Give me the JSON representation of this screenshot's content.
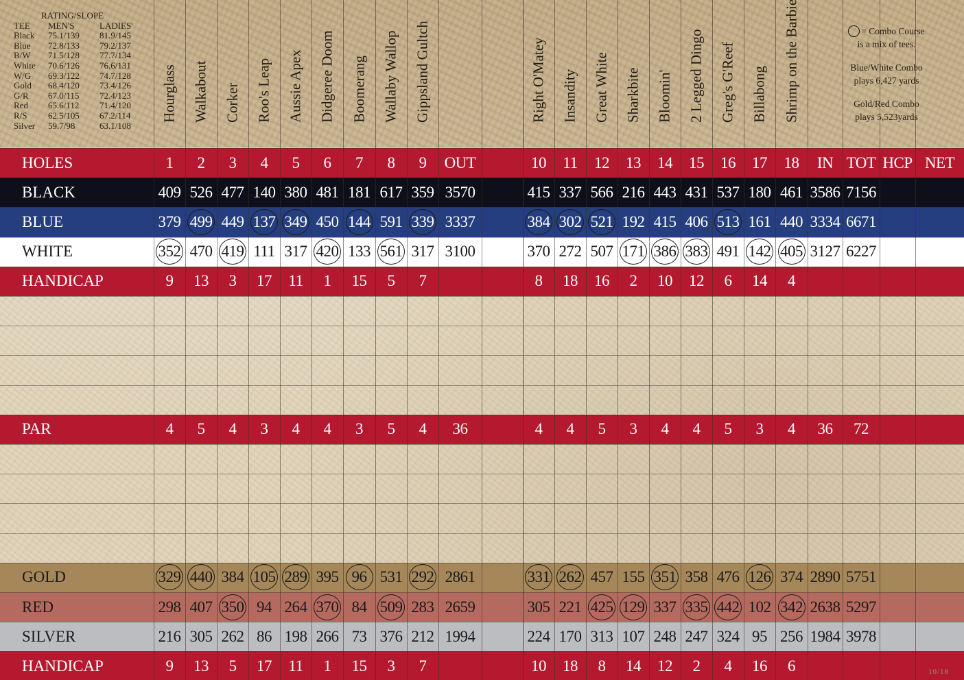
{
  "rating": {
    "title": "RATING/SLOPE",
    "headers": [
      "TEE",
      "MEN'S",
      "LADIES'"
    ],
    "rows": [
      [
        "Black",
        "75.1/139",
        "81.9/145"
      ],
      [
        "Blue",
        "72.8/133",
        "79.2/137"
      ],
      [
        "B/W",
        "71.5/128",
        "77.7/134"
      ],
      [
        "White",
        "70.6/126",
        "76.6/131"
      ],
      [
        "W/G",
        "69.3/122",
        "74.7/128"
      ],
      [
        "Gold",
        "68.4/120",
        "73.4/126"
      ],
      [
        "G/R",
        "67.0/115",
        "72.4/123"
      ],
      [
        "Red",
        "65.6/112",
        "71.4/120"
      ],
      [
        "R/S",
        "62.5/105",
        "67.2/114"
      ],
      [
        "Silver",
        "59.7/98",
        "63.1/108"
      ]
    ]
  },
  "hole_names": [
    "Hourglass",
    "Walkabout",
    "Corker",
    "Roo's Leap",
    "Aussie Apex",
    "Didgeree Doom",
    "Boomerang",
    "Wallaby Wallop",
    "Gippsland Gultch",
    "Right O'Matey",
    "Insandity",
    "Great White",
    "Sharkbite",
    "Bloomin'",
    "2 Legged Dingo",
    "Greg's G'Reef",
    "Billabong",
    "Shrimp on the Barbie"
  ],
  "legend": {
    "combo_line1": "= Combo Course",
    "combo_line2": "is a mix of tees.",
    "bw_line1": "Blue/White Combo",
    "bw_line2": "plays 6,427 yards",
    "gr_line1": "Gold/Red Combo",
    "gr_line2": "plays 5,523yards"
  },
  "colors": {
    "red": "#b5192f",
    "black": "#0f0f1c",
    "blue": "#253e7f",
    "white": "#ffffff",
    "gold": "#a5875a",
    "redtee": "#b56a5f",
    "silver": "#bbbdc0"
  },
  "rows": [
    {
      "label": "HOLES",
      "style": "red",
      "cells": [
        "1",
        "2",
        "3",
        "4",
        "5",
        "6",
        "7",
        "8",
        "9",
        "OUT",
        "",
        "10",
        "11",
        "12",
        "13",
        "14",
        "15",
        "16",
        "17",
        "18",
        "IN",
        "TOT",
        "HCP",
        "NET"
      ],
      "circled": []
    },
    {
      "label": "BLACK",
      "style": "black",
      "cells": [
        "409",
        "526",
        "477",
        "140",
        "380",
        "481",
        "181",
        "617",
        "359",
        "3570",
        "",
        "415",
        "337",
        "566",
        "216",
        "443",
        "431",
        "537",
        "180",
        "461",
        "3586",
        "7156",
        "",
        ""
      ],
      "circled": []
    },
    {
      "label": "BLUE",
      "style": "blue",
      "cells": [
        "379",
        "499",
        "449",
        "137",
        "349",
        "450",
        "144",
        "591",
        "339",
        "3337",
        "",
        "384",
        "302",
        "521",
        "192",
        "415",
        "406",
        "513",
        "161",
        "440",
        "3334",
        "6671",
        "",
        ""
      ],
      "circled": [
        1,
        3,
        4,
        6,
        8,
        11,
        12,
        13,
        17
      ]
    },
    {
      "label": "WHITE",
      "style": "white",
      "cells": [
        "352",
        "470",
        "419",
        "111",
        "317",
        "420",
        "133",
        "561",
        "317",
        "3100",
        "",
        "370",
        "272",
        "507",
        "171",
        "386",
        "383",
        "491",
        "142",
        "405",
        "3127",
        "6227",
        "",
        ""
      ],
      "circled": [
        0,
        2,
        5,
        7,
        14,
        15,
        16,
        18,
        19
      ]
    },
    {
      "label": "HANDICAP",
      "style": "red",
      "cells": [
        "9",
        "13",
        "3",
        "17",
        "11",
        "1",
        "15",
        "5",
        "7",
        "",
        "",
        "8",
        "18",
        "16",
        "2",
        "10",
        "12",
        "6",
        "14",
        "4",
        "",
        "",
        "",
        ""
      ],
      "circled": []
    },
    {
      "label": "",
      "style": "blank",
      "cells": [],
      "circled": []
    },
    {
      "label": "",
      "style": "blank",
      "cells": [],
      "circled": []
    },
    {
      "label": "",
      "style": "blank",
      "cells": [],
      "circled": []
    },
    {
      "label": "",
      "style": "blank",
      "cells": [],
      "circled": []
    },
    {
      "label": "PAR",
      "style": "red",
      "cells": [
        "4",
        "5",
        "4",
        "3",
        "4",
        "4",
        "3",
        "5",
        "4",
        "36",
        "",
        "4",
        "4",
        "5",
        "3",
        "4",
        "4",
        "5",
        "3",
        "4",
        "36",
        "72",
        "",
        ""
      ],
      "circled": []
    },
    {
      "label": "",
      "style": "blank",
      "cells": [],
      "circled": []
    },
    {
      "label": "",
      "style": "blank",
      "cells": [],
      "circled": []
    },
    {
      "label": "",
      "style": "blank",
      "cells": [],
      "circled": []
    },
    {
      "label": "",
      "style": "blank",
      "cells": [],
      "circled": []
    },
    {
      "label": "GOLD",
      "style": "gold",
      "cells": [
        "329",
        "440",
        "384",
        "105",
        "289",
        "395",
        "96",
        "531",
        "292",
        "2861",
        "",
        "331",
        "262",
        "457",
        "155",
        "351",
        "358",
        "476",
        "126",
        "374",
        "2890",
        "5751",
        "",
        ""
      ],
      "circled": [
        0,
        1,
        3,
        4,
        6,
        8,
        11,
        12,
        15,
        18
      ]
    },
    {
      "label": "RED",
      "style": "redtee",
      "cells": [
        "298",
        "407",
        "350",
        "94",
        "264",
        "370",
        "84",
        "509",
        "283",
        "2659",
        "",
        "305",
        "221",
        "425",
        "129",
        "337",
        "335",
        "442",
        "102",
        "342",
        "2638",
        "5297",
        "",
        ""
      ],
      "circled": [
        2,
        5,
        7,
        13,
        14,
        16,
        17,
        19
      ]
    },
    {
      "label": "SILVER",
      "style": "silver",
      "cells": [
        "216",
        "305",
        "262",
        "86",
        "198",
        "266",
        "73",
        "376",
        "212",
        "1994",
        "",
        "224",
        "170",
        "313",
        "107",
        "248",
        "247",
        "324",
        "95",
        "256",
        "1984",
        "3978",
        "",
        ""
      ],
      "circled": []
    },
    {
      "label": "HANDICAP",
      "style": "red",
      "cells": [
        "9",
        "13",
        "5",
        "17",
        "11",
        "1",
        "15",
        "3",
        "7",
        "",
        "",
        "10",
        "18",
        "8",
        "14",
        "12",
        "2",
        "4",
        "16",
        "6",
        "",
        "",
        "",
        ""
      ],
      "circled": []
    }
  ],
  "page_number": "10/18"
}
